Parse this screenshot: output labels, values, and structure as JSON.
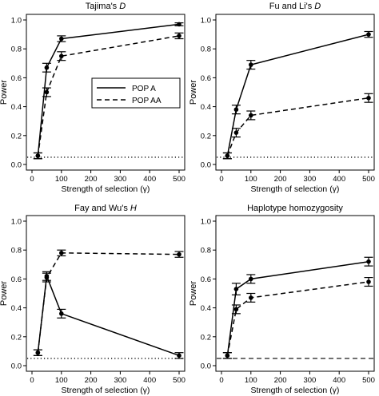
{
  "chart_data": [
    {
      "type": "line",
      "title": "Tajima's ",
      "title_italic": "D",
      "xlabel": "Strength of selection (γ)",
      "ylabel": "Power",
      "x": [
        20,
        50,
        100,
        500
      ],
      "xlim": [
        0,
        500
      ],
      "ylim": [
        0,
        1.0
      ],
      "xticks": [
        "0",
        "100",
        "200",
        "300",
        "400",
        "500"
      ],
      "yticks": [
        "0.0",
        "0.2",
        "0.4",
        "0.6",
        "0.8",
        "1.0"
      ],
      "reference_line": {
        "y": 0.05,
        "style": "dotted"
      },
      "legend": {
        "placement": "center-left",
        "entries": [
          "POP A",
          "POP AA"
        ]
      },
      "series": [
        {
          "name": "POP A",
          "style": "solid",
          "values": [
            0.06,
            0.67,
            0.87,
            0.97
          ],
          "errors": [
            0.02,
            0.03,
            0.02,
            0.01
          ]
        },
        {
          "name": "POP AA",
          "style": "dashed",
          "values": [
            0.06,
            0.5,
            0.75,
            0.89
          ],
          "errors": [
            0.02,
            0.03,
            0.03,
            0.02
          ]
        }
      ]
    },
    {
      "type": "line",
      "title": "Fu and Li's ",
      "title_italic": "D",
      "xlabel": "Strength of selection (γ)",
      "ylabel": "Power",
      "x": [
        20,
        50,
        100,
        500
      ],
      "xlim": [
        0,
        500
      ],
      "ylim": [
        0,
        1.0
      ],
      "xticks": [
        "0",
        "100",
        "200",
        "300",
        "400",
        "500"
      ],
      "yticks": [
        "0.0",
        "0.2",
        "0.4",
        "0.6",
        "0.8",
        "1.0"
      ],
      "reference_line": {
        "y": 0.05,
        "style": "dotted"
      },
      "series": [
        {
          "name": "POP A",
          "style": "solid",
          "values": [
            0.06,
            0.38,
            0.69,
            0.9
          ],
          "errors": [
            0.02,
            0.03,
            0.03,
            0.02
          ]
        },
        {
          "name": "POP AA",
          "style": "dashed",
          "values": [
            0.06,
            0.22,
            0.34,
            0.46
          ],
          "errors": [
            0.02,
            0.03,
            0.03,
            0.03
          ]
        }
      ]
    },
    {
      "type": "line",
      "title": "Fay and Wu's ",
      "title_italic": "H",
      "xlabel": "Strength of selection (γ)",
      "ylabel": "Power",
      "x": [
        20,
        50,
        100,
        500
      ],
      "xlim": [
        0,
        500
      ],
      "ylim": [
        0,
        1.0
      ],
      "xticks": [
        "0",
        "100",
        "200",
        "300",
        "400",
        "500"
      ],
      "yticks": [
        "0.0",
        "0.2",
        "0.4",
        "0.6",
        "0.8",
        "1.0"
      ],
      "reference_line": {
        "y": 0.05,
        "style": "dotted"
      },
      "series": [
        {
          "name": "POP A",
          "style": "solid",
          "values": [
            0.09,
            0.62,
            0.36,
            0.07
          ],
          "errors": [
            0.02,
            0.03,
            0.03,
            0.02
          ]
        },
        {
          "name": "POP AA",
          "style": "dashed",
          "values": [
            0.09,
            0.61,
            0.78,
            0.77
          ],
          "errors": [
            0.02,
            0.03,
            0.02,
            0.02
          ]
        }
      ]
    },
    {
      "type": "line",
      "title": "Haplotype homozygosity",
      "title_italic": "",
      "xlabel": "Strength of selection (γ)",
      "ylabel": "Power",
      "x": [
        20,
        50,
        100,
        500
      ],
      "xlim": [
        0,
        500
      ],
      "ylim": [
        0,
        1.0
      ],
      "xticks": [
        "0",
        "100",
        "200",
        "300",
        "400",
        "500"
      ],
      "yticks": [
        "0.0",
        "0.2",
        "0.4",
        "0.6",
        "0.8",
        "1.0"
      ],
      "reference_line": {
        "y": 0.05,
        "style": "dashed"
      },
      "series": [
        {
          "name": "POP A",
          "style": "solid",
          "values": [
            0.07,
            0.53,
            0.6,
            0.72
          ],
          "errors": [
            0.02,
            0.04,
            0.03,
            0.03
          ]
        },
        {
          "name": "POP AA",
          "style": "dashed",
          "values": [
            0.07,
            0.39,
            0.47,
            0.58
          ],
          "errors": [
            0.02,
            0.03,
            0.03,
            0.03
          ]
        }
      ]
    }
  ]
}
